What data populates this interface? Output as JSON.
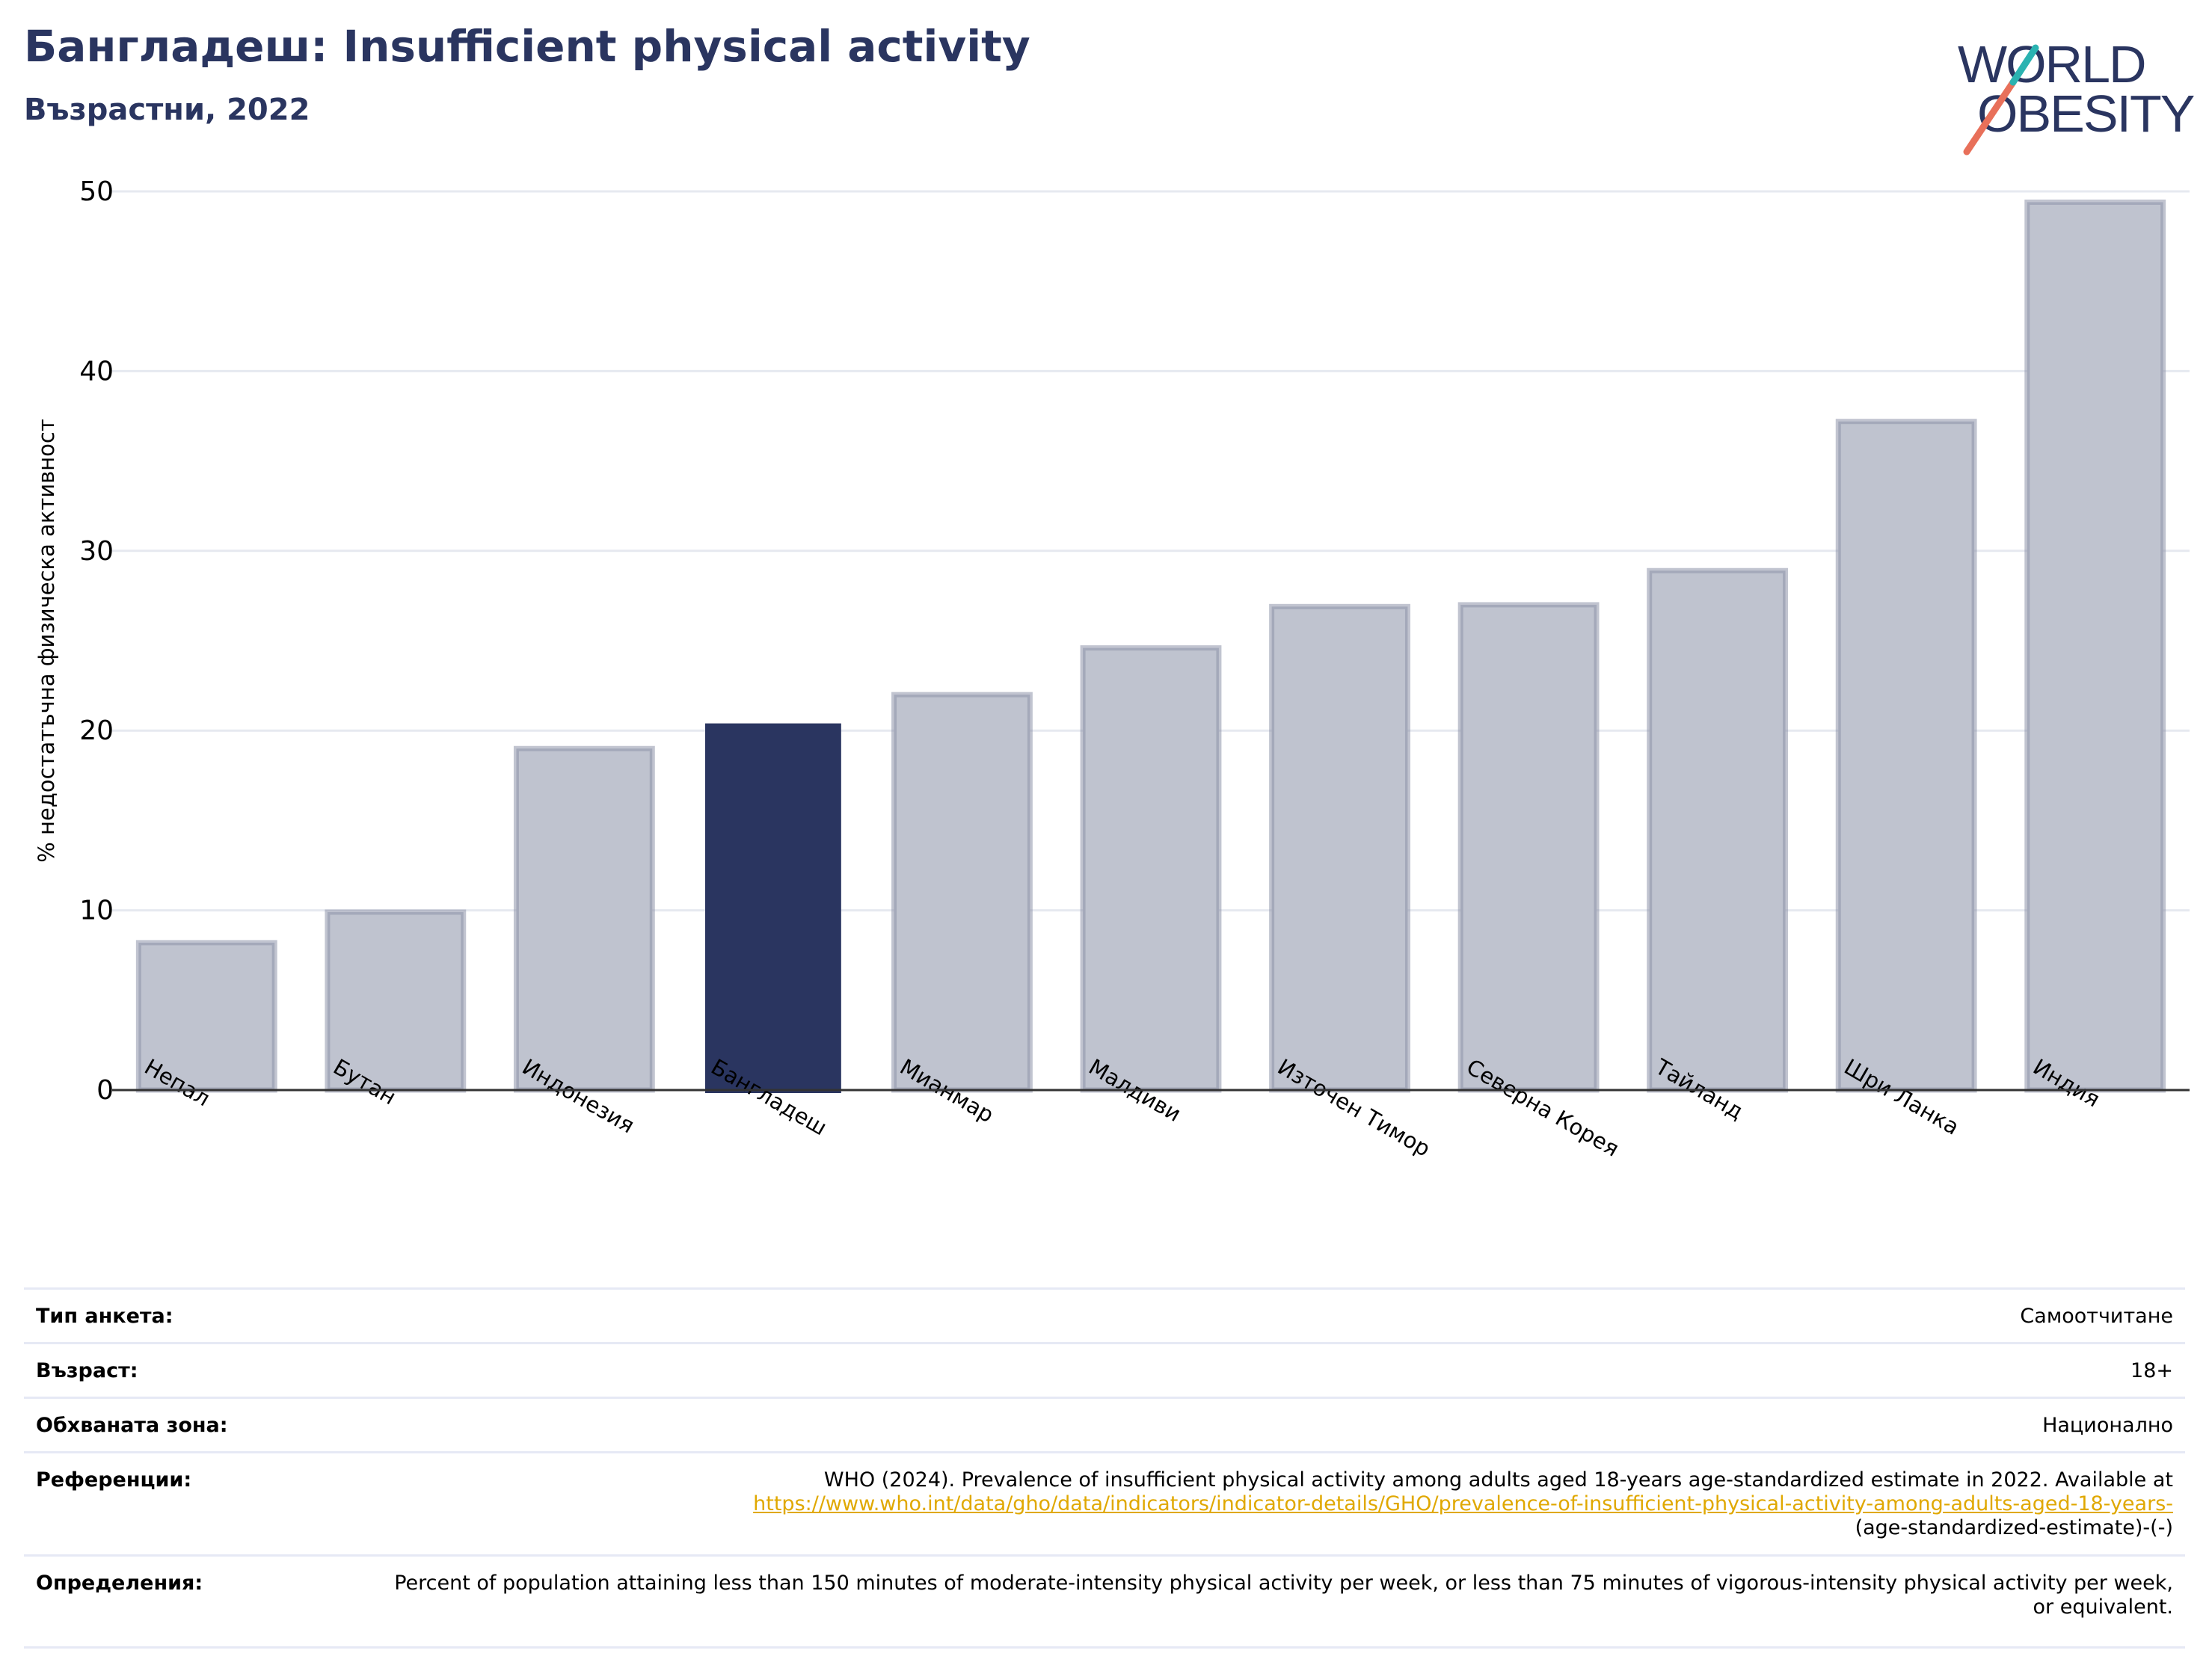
{
  "header": {
    "title": "Бангладеш: Insufficient physical activity",
    "subtitle": "Възрастни, 2022"
  },
  "logo": {
    "line1": "WORLD",
    "line2": "OBESITY",
    "colors": [
      "#2a3560",
      "#e8705a",
      "#2bb3b1"
    ]
  },
  "chart_data": {
    "type": "bar",
    "categories": [
      "Непал",
      "Бутан",
      "Индонезия",
      "Бангладеш",
      "Мианмар",
      "Малдиви",
      "Източен Тимор",
      "Северна Корея",
      "Тайланд",
      "Шри Ланка",
      "Индия"
    ],
    "values": [
      8.2,
      9.9,
      19.0,
      20.4,
      22.0,
      24.6,
      26.9,
      27.0,
      28.9,
      37.2,
      49.4
    ],
    "highlight_index": 3,
    "ylabel": "% недостатъчна физическа активност",
    "xlabel": "",
    "ylim": [
      0,
      50
    ],
    "yticks": [
      0,
      10,
      20,
      30,
      40,
      50
    ],
    "grid": true,
    "colors": {
      "highlight": "#2a3560",
      "default_fill": "#bfc3cf",
      "default_stroke": "#8e94aa"
    }
  },
  "meta": {
    "rows": [
      {
        "key": "Тип анкета:",
        "value": "Самоотчитане"
      },
      {
        "key": "Възраст:",
        "value": "18+"
      },
      {
        "key": "Обхваната зона:",
        "value": "Национално"
      },
      {
        "key": "Референции:",
        "value": "WHO (2024). Prevalence of insufficient physical activity among adults aged 18-years age-standardized estimate in 2022. Available at",
        "link": "https://www.who.int/data/gho/data/indicators/indicator-details/GHO/prevalence-of-insufficient-physical-activity-among-adults-aged-18-years-",
        "value_tail": "(age-standardized-estimate)-(-)"
      },
      {
        "key": "Определения:",
        "value": "Percent of population attaining less than 150 minutes of moderate-intensity physical activity per week, or less than 75 minutes of vigorous-intensity physical activity per week, or equivalent."
      }
    ]
  }
}
